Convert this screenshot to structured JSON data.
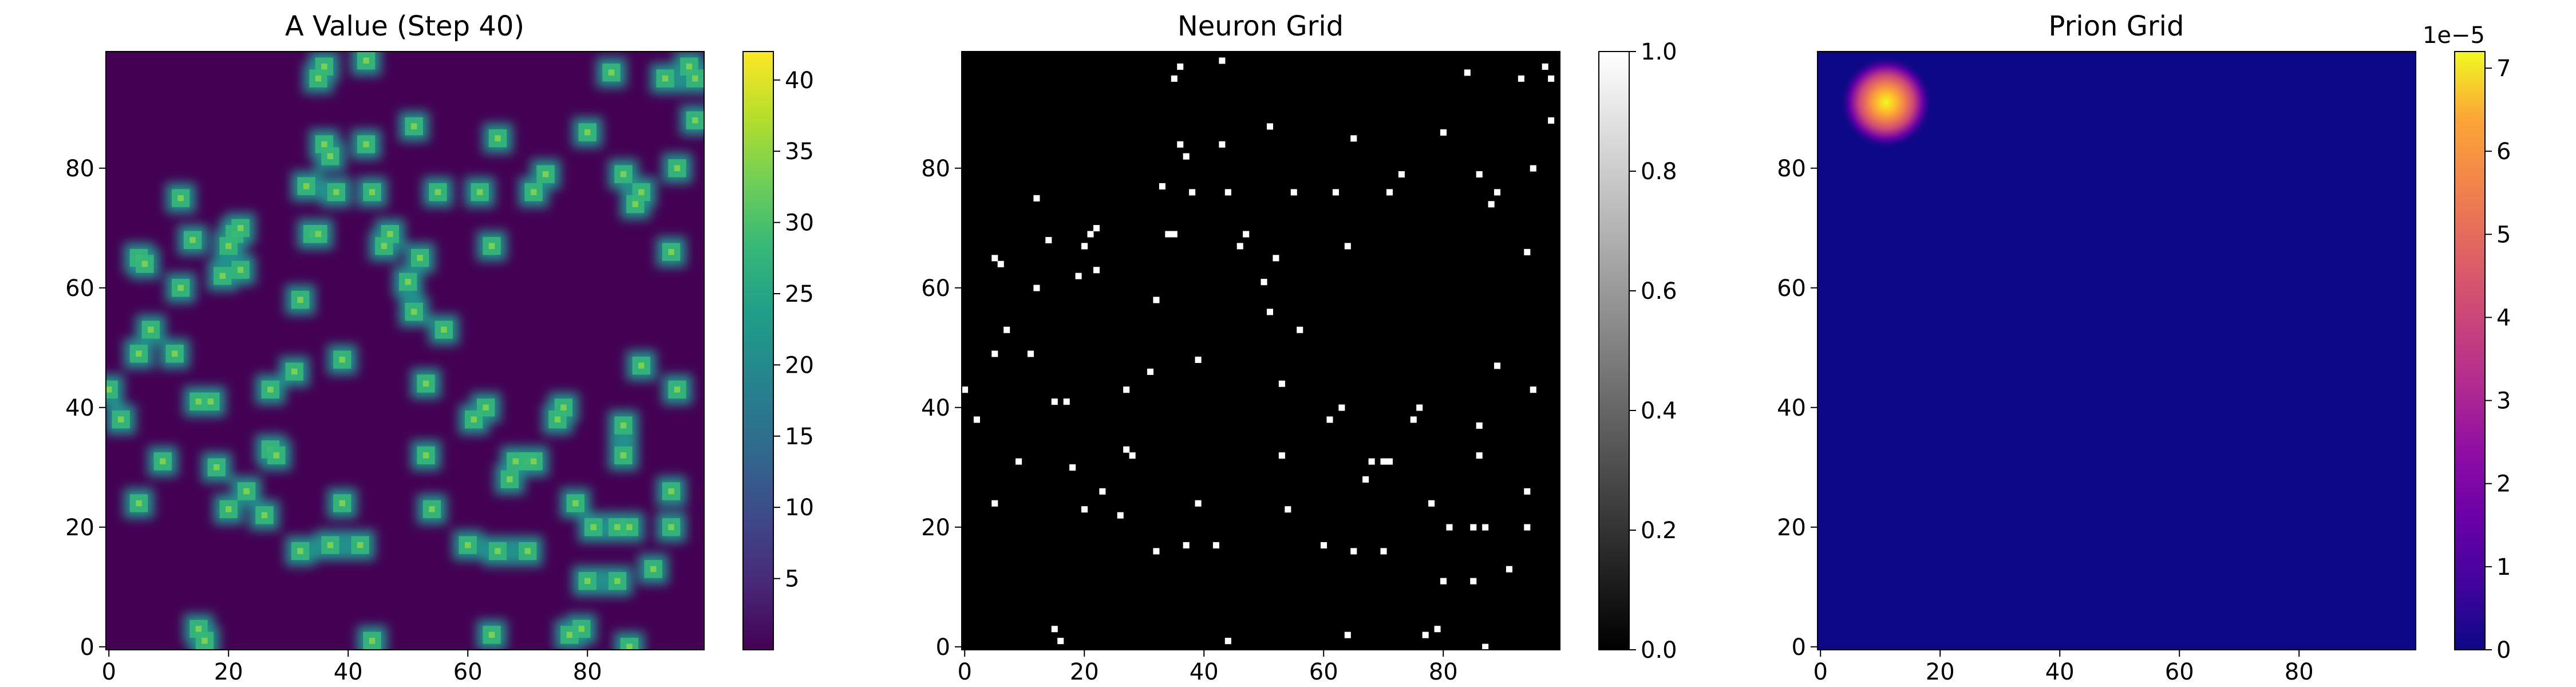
{
  "panels": [
    {
      "id": "a_value",
      "title": "A Value (Step 40)",
      "colormap": "viridis",
      "x_ticks": [
        "0",
        "20",
        "40",
        "60",
        "80"
      ],
      "y_ticks": [
        "0",
        "20",
        "40",
        "60",
        "80"
      ],
      "colorbar_ticks": [
        "5",
        "10",
        "15",
        "20",
        "25",
        "30",
        "35",
        "40"
      ],
      "colorbar_offset": ""
    },
    {
      "id": "neuron_grid",
      "title": "Neuron Grid",
      "colormap": "gray",
      "x_ticks": [
        "0",
        "20",
        "40",
        "60",
        "80"
      ],
      "y_ticks": [
        "0",
        "20",
        "40",
        "60",
        "80"
      ],
      "colorbar_ticks": [
        "0.0",
        "0.2",
        "0.4",
        "0.6",
        "0.8",
        "1.0"
      ],
      "colorbar_offset": ""
    },
    {
      "id": "prion_grid",
      "title": "Prion Grid",
      "colormap": "plasma",
      "x_ticks": [
        "0",
        "20",
        "40",
        "60",
        "80"
      ],
      "y_ticks": [
        "0",
        "20",
        "40",
        "60",
        "80"
      ],
      "colorbar_ticks": [
        "0",
        "1",
        "2",
        "3",
        "4",
        "5",
        "6",
        "7"
      ],
      "colorbar_offset": "1e−5"
    }
  ],
  "chart_data": [
    {
      "type": "heatmap",
      "title": "A Value (Step 40)",
      "xlabel": "",
      "ylabel": "",
      "grid_size": [
        100,
        100
      ],
      "xlim": [
        0,
        99
      ],
      "ylim": [
        0,
        99
      ],
      "colormap": "viridis",
      "value_range": [
        0,
        42
      ],
      "background_value": 0,
      "blob_peak_value": 40,
      "blob_source": "neuron positions (same as Neuron Grid)"
    },
    {
      "type": "heatmap",
      "title": "Neuron Grid",
      "xlabel": "",
      "ylabel": "",
      "grid_size": [
        100,
        100
      ],
      "xlim": [
        0,
        99
      ],
      "ylim": [
        0,
        99
      ],
      "colormap": "gray",
      "value_range": [
        0,
        1
      ],
      "background_value": 0,
      "neuron_value": 1,
      "neurons": [
        [
          0,
          43
        ],
        [
          2,
          38
        ],
        [
          5,
          24
        ],
        [
          5,
          49
        ],
        [
          5,
          65
        ],
        [
          6,
          64
        ],
        [
          7,
          53
        ],
        [
          9,
          31
        ],
        [
          11,
          49
        ],
        [
          12,
          60
        ],
        [
          12,
          75
        ],
        [
          14,
          68
        ],
        [
          15,
          3
        ],
        [
          15,
          41
        ],
        [
          16,
          1
        ],
        [
          17,
          41
        ],
        [
          18,
          30
        ],
        [
          19,
          62
        ],
        [
          20,
          23
        ],
        [
          20,
          67
        ],
        [
          21,
          69
        ],
        [
          22,
          63
        ],
        [
          22,
          70
        ],
        [
          23,
          26
        ],
        [
          26,
          22
        ],
        [
          27,
          43
        ],
        [
          27,
          33
        ],
        [
          28,
          32
        ],
        [
          31,
          46
        ],
        [
          32,
          16
        ],
        [
          32,
          58
        ],
        [
          33,
          77
        ],
        [
          34,
          69
        ],
        [
          35,
          69
        ],
        [
          35,
          95
        ],
        [
          36,
          97
        ],
        [
          36,
          84
        ],
        [
          37,
          17
        ],
        [
          37,
          82
        ],
        [
          38,
          76
        ],
        [
          39,
          24
        ],
        [
          39,
          48
        ],
        [
          42,
          17
        ],
        [
          43,
          98
        ],
        [
          43,
          84
        ],
        [
          44,
          1
        ],
        [
          44,
          76
        ],
        [
          46,
          67
        ],
        [
          47,
          69
        ],
        [
          50,
          61
        ],
        [
          51,
          56
        ],
        [
          51,
          87
        ],
        [
          52,
          65
        ],
        [
          53,
          32
        ],
        [
          53,
          44
        ],
        [
          54,
          23
        ],
        [
          55,
          76
        ],
        [
          56,
          53
        ],
        [
          60,
          17
        ],
        [
          61,
          38
        ],
        [
          62,
          76
        ],
        [
          63,
          40
        ],
        [
          64,
          67
        ],
        [
          64,
          2
        ],
        [
          65,
          16
        ],
        [
          65,
          85
        ],
        [
          67,
          28
        ],
        [
          68,
          31
        ],
        [
          70,
          16
        ],
        [
          70,
          31
        ],
        [
          71,
          31
        ],
        [
          71,
          76
        ],
        [
          73,
          79
        ],
        [
          75,
          38
        ],
        [
          76,
          40
        ],
        [
          77,
          2
        ],
        [
          78,
          24
        ],
        [
          79,
          3
        ],
        [
          80,
          11
        ],
        [
          80,
          86
        ],
        [
          81,
          20
        ],
        [
          84,
          96
        ],
        [
          85,
          11
        ],
        [
          85,
          20
        ],
        [
          86,
          37
        ],
        [
          86,
          32
        ],
        [
          86,
          79
        ],
        [
          87,
          0
        ],
        [
          87,
          20
        ],
        [
          88,
          74
        ],
        [
          89,
          76
        ],
        [
          89,
          47
        ],
        [
          91,
          13
        ],
        [
          93,
          95
        ],
        [
          94,
          20
        ],
        [
          94,
          66
        ],
        [
          94,
          26
        ],
        [
          95,
          43
        ],
        [
          95,
          80
        ],
        [
          97,
          97
        ],
        [
          98,
          95
        ],
        [
          98,
          88
        ]
      ]
    },
    {
      "type": "heatmap",
      "title": "Prion Grid",
      "xlabel": "",
      "ylabel": "",
      "grid_size": [
        100,
        100
      ],
      "xlim": [
        0,
        99
      ],
      "ylim": [
        0,
        99
      ],
      "colormap": "plasma",
      "value_range": [
        0,
        7.2e-05
      ],
      "colorbar_scale": 1e-05,
      "peak": {
        "x": 11,
        "y": 91,
        "value": 7.2e-05,
        "sigma": 3
      }
    }
  ]
}
